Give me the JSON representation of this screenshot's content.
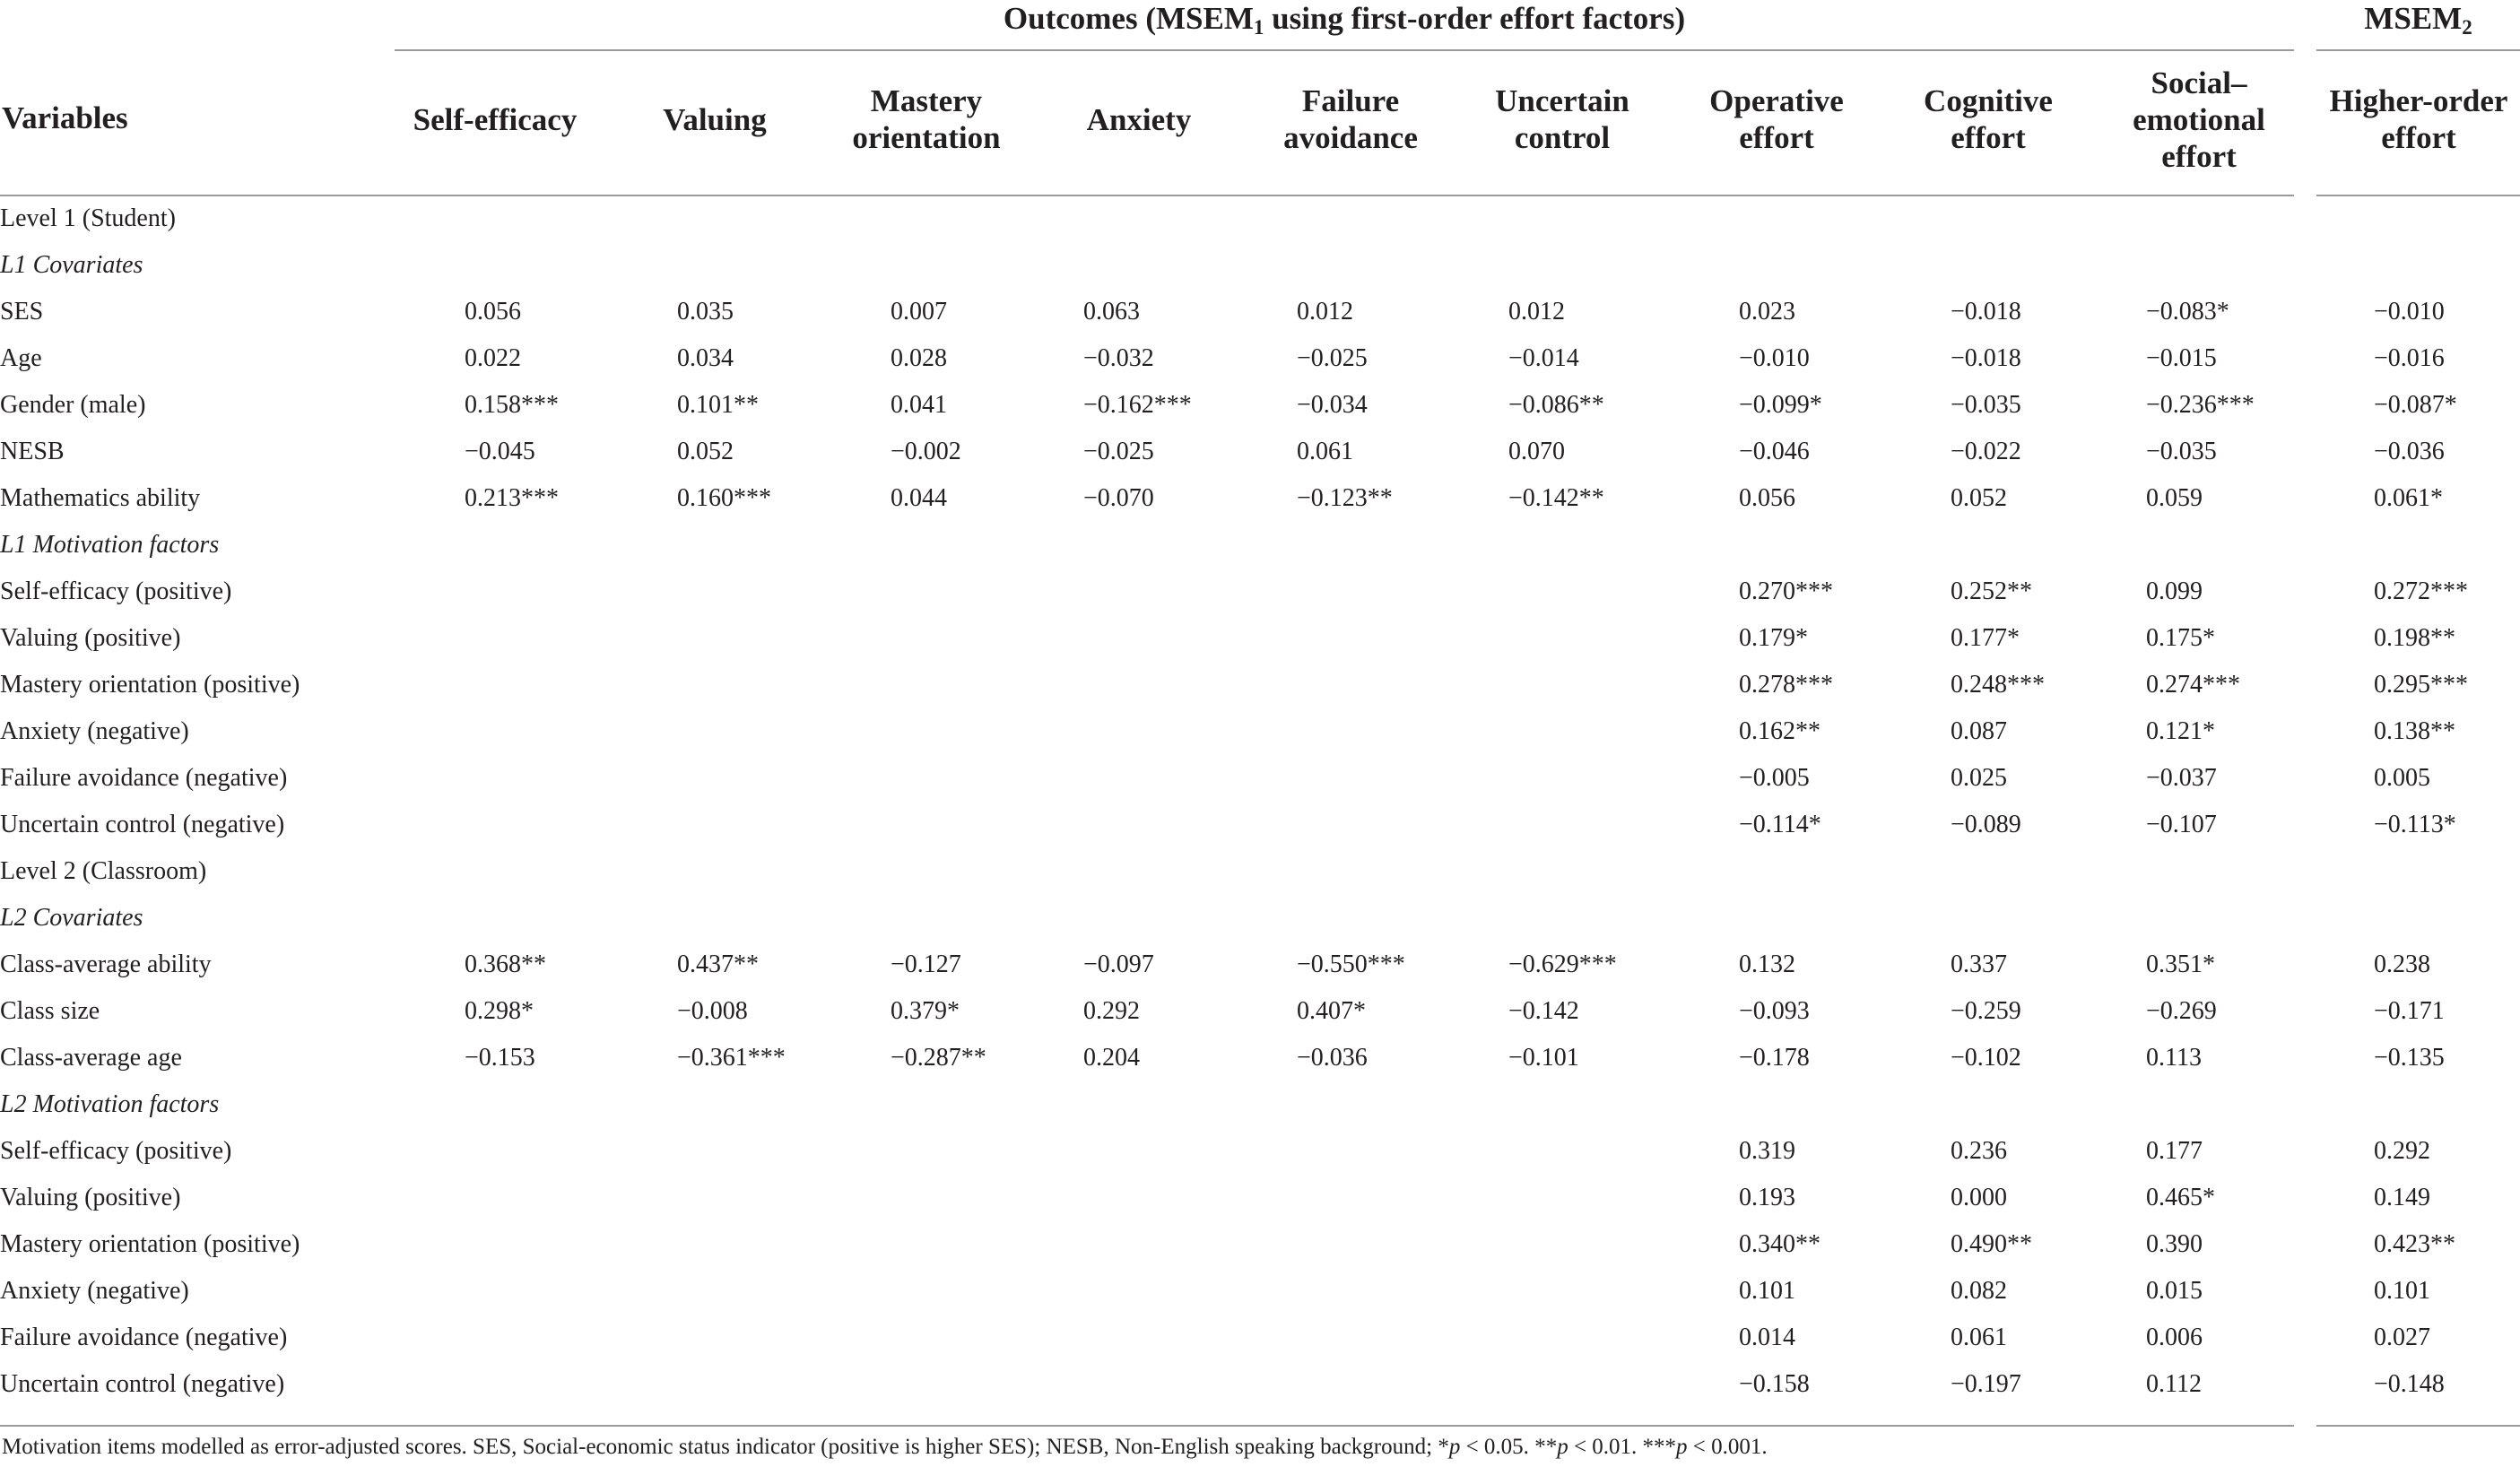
{
  "header": {
    "outcomes_title": "Outcomes (MSEM",
    "outcomes_sub": "1",
    "outcomes_title_rest": " using first-order effort factors)",
    "msem2_title": "MSEM",
    "msem2_sub": "2",
    "variables_label": "Variables",
    "columns": [
      [
        "Self-efficacy"
      ],
      [
        "Valuing"
      ],
      [
        "Mastery",
        "orientation"
      ],
      [
        "Anxiety"
      ],
      [
        "Failure",
        "avoidance"
      ],
      [
        "Uncertain",
        "control"
      ],
      [
        "Operative",
        "effort"
      ],
      [
        "Cognitive",
        "effort"
      ],
      [
        "Social–",
        "emotional",
        "effort"
      ],
      [
        "Higher-order",
        "effort"
      ]
    ]
  },
  "rows": [
    {
      "type": "section",
      "label": "Level 1 (Student)"
    },
    {
      "type": "subsection",
      "label": "L1 Covariates"
    },
    {
      "type": "data",
      "label": "SES",
      "values": [
        "0.056",
        "0.035",
        "0.007",
        "0.063",
        "0.012",
        "0.012",
        "0.023",
        "−0.018",
        "−0.083*",
        "−0.010"
      ]
    },
    {
      "type": "data",
      "label": "Age",
      "values": [
        "0.022",
        "0.034",
        "0.028",
        "−0.032",
        "−0.025",
        "−0.014",
        "−0.010",
        "−0.018",
        "−0.015",
        "−0.016"
      ]
    },
    {
      "type": "data",
      "label": "Gender (male)",
      "values": [
        "0.158***",
        "0.101**",
        "0.041",
        "−0.162***",
        "−0.034",
        "−0.086**",
        "−0.099*",
        "−0.035",
        "−0.236***",
        "−0.087*"
      ]
    },
    {
      "type": "data",
      "label": "NESB",
      "values": [
        "−0.045",
        "0.052",
        "−0.002",
        "−0.025",
        "0.061",
        "0.070",
        "−0.046",
        "−0.022",
        "−0.035",
        "−0.036"
      ]
    },
    {
      "type": "data",
      "label": "Mathematics ability",
      "values": [
        "0.213***",
        "0.160***",
        "0.044",
        "−0.070",
        "−0.123**",
        "−0.142**",
        "0.056",
        "0.052",
        "0.059",
        "0.061*"
      ]
    },
    {
      "type": "subsection",
      "label": "L1 Motivation factors"
    },
    {
      "type": "data",
      "label": "Self-efficacy (positive)",
      "values": [
        "",
        "",
        "",
        "",
        "",
        "",
        "0.270***",
        "0.252**",
        "0.099",
        "0.272***"
      ]
    },
    {
      "type": "data",
      "label": "Valuing (positive)",
      "values": [
        "",
        "",
        "",
        "",
        "",
        "",
        "0.179*",
        "0.177*",
        "0.175*",
        "0.198**"
      ]
    },
    {
      "type": "data",
      "label": "Mastery orientation (positive)",
      "values": [
        "",
        "",
        "",
        "",
        "",
        "",
        "0.278***",
        "0.248***",
        "0.274***",
        "0.295***"
      ]
    },
    {
      "type": "data",
      "label": "Anxiety (negative)",
      "values": [
        "",
        "",
        "",
        "",
        "",
        "",
        "0.162**",
        "0.087",
        "0.121*",
        "0.138**"
      ]
    },
    {
      "type": "data",
      "label": "Failure avoidance (negative)",
      "values": [
        "",
        "",
        "",
        "",
        "",
        "",
        "−0.005",
        "0.025",
        "−0.037",
        "0.005"
      ]
    },
    {
      "type": "data",
      "label": "Uncertain control (negative)",
      "values": [
        "",
        "",
        "",
        "",
        "",
        "",
        "−0.114*",
        "−0.089",
        "−0.107",
        "−0.113*"
      ]
    },
    {
      "type": "section",
      "label": "Level 2 (Classroom)"
    },
    {
      "type": "subsection",
      "label": "L2 Covariates"
    },
    {
      "type": "data",
      "label": "Class-average ability",
      "values": [
        "0.368**",
        "0.437**",
        "−0.127",
        "−0.097",
        "−0.550***",
        "−0.629***",
        "0.132",
        "0.337",
        "0.351*",
        "0.238"
      ]
    },
    {
      "type": "data",
      "label": "Class size",
      "values": [
        "0.298*",
        "−0.008",
        "0.379*",
        "0.292",
        "0.407*",
        "−0.142",
        "−0.093",
        "−0.259",
        "−0.269",
        "−0.171"
      ]
    },
    {
      "type": "data",
      "label": "Class-average age",
      "values": [
        "−0.153",
        "−0.361***",
        "−0.287**",
        "0.204",
        "−0.036",
        "−0.101",
        "−0.178",
        "−0.102",
        "0.113",
        "−0.135"
      ]
    },
    {
      "type": "subsection",
      "label": "L2 Motivation factors"
    },
    {
      "type": "data",
      "label": "Self-efficacy (positive)",
      "values": [
        "",
        "",
        "",
        "",
        "",
        "",
        "0.319",
        "0.236",
        "0.177",
        "0.292"
      ]
    },
    {
      "type": "data",
      "label": "Valuing (positive)",
      "values": [
        "",
        "",
        "",
        "",
        "",
        "",
        "0.193",
        "0.000",
        "0.465*",
        "0.149"
      ]
    },
    {
      "type": "data",
      "label": "Mastery orientation (positive)",
      "values": [
        "",
        "",
        "",
        "",
        "",
        "",
        "0.340**",
        "0.490**",
        "0.390",
        "0.423**"
      ]
    },
    {
      "type": "data",
      "label": "Anxiety (negative)",
      "values": [
        "",
        "",
        "",
        "",
        "",
        "",
        "0.101",
        "0.082",
        "0.015",
        "0.101"
      ]
    },
    {
      "type": "data",
      "label": "Failure avoidance (negative)",
      "values": [
        "",
        "",
        "",
        "",
        "",
        "",
        "0.014",
        "0.061",
        "0.006",
        "0.027"
      ]
    },
    {
      "type": "data",
      "label": "Uncertain control (negative)",
      "values": [
        "",
        "",
        "",
        "",
        "",
        "",
        "−0.158",
        "−0.197",
        "0.112",
        "−0.148"
      ]
    }
  ],
  "footnote": {
    "text": "Motivation items modelled as error-adjusted scores. SES, Social-economic status indicator (positive is higher SES); NESB, Non-English speaking background; ",
    "sig": [
      {
        "stars": "*",
        "p": "p",
        "rest": " < 0.05. "
      },
      {
        "stars": "**",
        "p": "p",
        "rest": " < 0.01. "
      },
      {
        "stars": "***",
        "p": "p",
        "rest": " < 0.001."
      }
    ]
  }
}
